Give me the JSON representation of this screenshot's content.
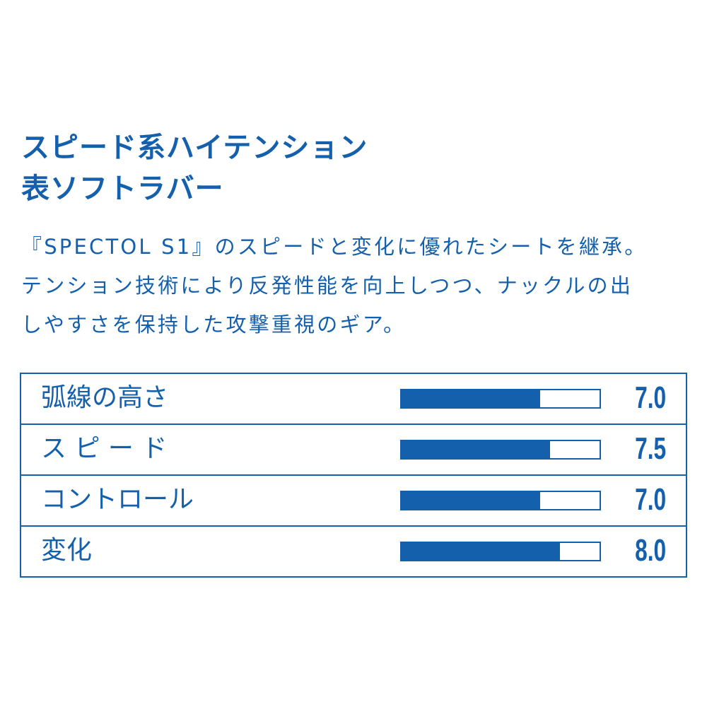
{
  "title": {
    "line1": "スピード系ハイテンション",
    "line2": "表ソフトラバー"
  },
  "description": {
    "line1": "『SPECTOL S1』のスピードと変化に優れたシートを継承。",
    "line2": "テンション技術により反発性能を向上しつつ、ナックルの出",
    "line3": "しやすさを保持した攻撃重視のギア。"
  },
  "specs": [
    {
      "label": "弧線の高さ",
      "value": "7.0",
      "level": 0.7
    },
    {
      "label": "ス ピ ー ド",
      "value": "7.5",
      "level": 0.75
    },
    {
      "label": "コントロール",
      "value": "7.0",
      "level": 0.7
    },
    {
      "label": "変化",
      "value": "8.0",
      "level": 0.8
    }
  ],
  "colors": {
    "accent": "#1460ad",
    "background": "#ffffff"
  }
}
